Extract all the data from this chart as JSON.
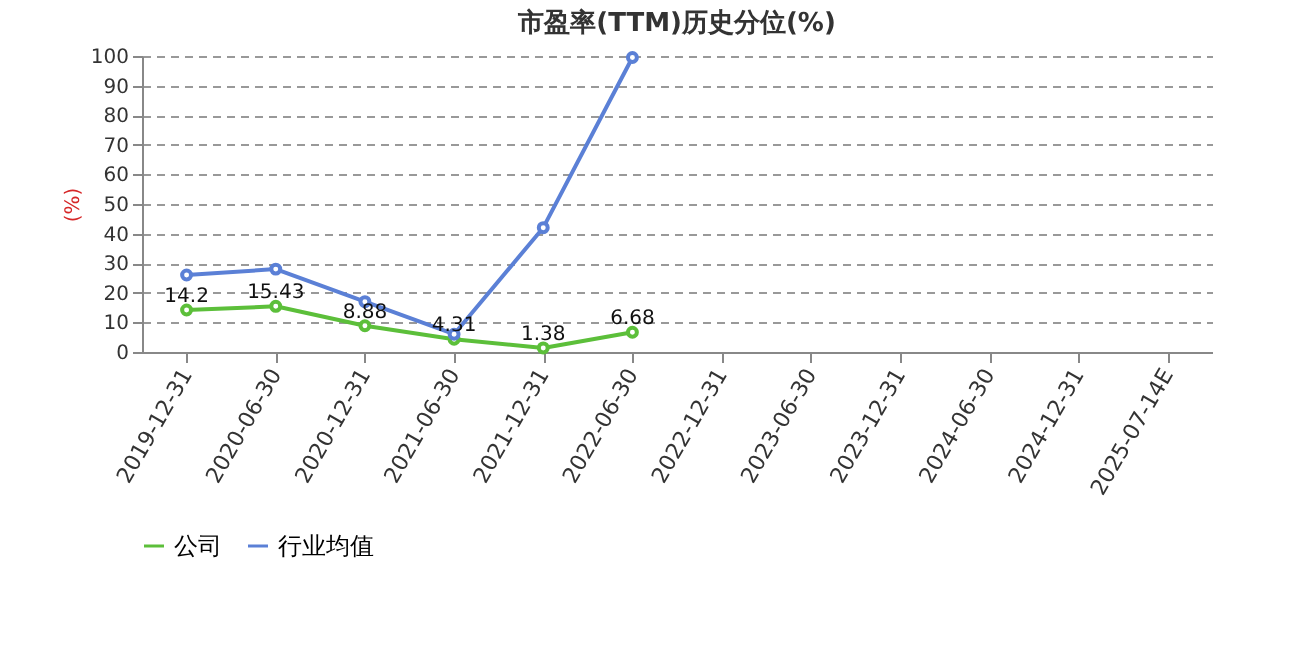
{
  "chart_data": {
    "type": "line",
    "title": "市盈率(TTM)历史分位(%)",
    "ylabel": "(%)",
    "categories": [
      "2019-12-31",
      "2020-06-30",
      "2020-12-31",
      "2021-06-30",
      "2021-12-31",
      "2022-06-30",
      "2022-12-31",
      "2023-06-30",
      "2023-12-31",
      "2024-06-30",
      "2024-12-31",
      "2025-07-14E"
    ],
    "series": [
      {
        "name": "公司",
        "color": "#5cbf3a",
        "values": [
          14.2,
          15.43,
          8.88,
          4.31,
          1.38,
          6.68,
          null,
          null,
          null,
          null,
          null,
          null
        ],
        "value_labels": [
          "14.2",
          "15.43",
          "8.88",
          "4.31",
          "1.38",
          "6.68",
          null,
          null,
          null,
          null,
          null,
          null
        ]
      },
      {
        "name": "行业均值",
        "color": "#5b80d6",
        "values": [
          26,
          28,
          17,
          6,
          42,
          99.5,
          null,
          null,
          null,
          null,
          null,
          null
        ]
      }
    ],
    "ylim": [
      0,
      100
    ],
    "yticks": [
      0,
      10,
      20,
      30,
      40,
      50,
      60,
      70,
      80,
      90,
      100
    ],
    "grid": "y",
    "legend": "bottom",
    "marker": "circle",
    "line_style": "solid"
  }
}
